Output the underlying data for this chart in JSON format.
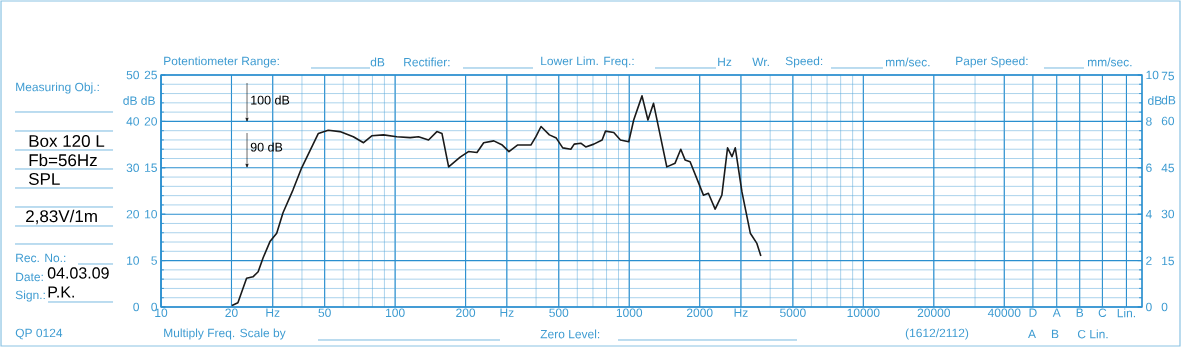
{
  "chart_data": {
    "type": "line",
    "log": "x",
    "grid": true,
    "marker": "none",
    "line_style": "solid",
    "x": [
      20.1,
      21.3,
      23.2,
      24.7,
      26.0,
      27.3,
      29.2,
      31.2,
      33.2,
      36.6,
      39.9,
      43.4,
      47.0,
      51.8,
      58.1,
      66.3,
      73.3,
      79.5,
      89.2,
      101.7,
      115.9,
      125.9,
      138.9,
      150.8,
      158.5,
      169.3,
      189.6,
      205.7,
      223.7,
      238.9,
      264,
      286.9,
      306.4,
      333,
      380,
      399.5,
      420,
      456,
      488,
      520,
      563,
      582,
      621,
      652,
      706,
      766,
      792,
      859,
      917,
      995,
      1045,
      1134,
      1202,
      1270,
      1447,
      1570,
      1660,
      1732,
      1820,
      2075,
      2178,
      2328,
      2487,
      2630,
      2747,
      2838,
      3030,
      3290,
      3510,
      3650
    ],
    "series": [
      {
        "color": "#1a1a1a",
        "values": [
          0.3,
          0.9,
          6.2,
          6.5,
          7.6,
          10.6,
          14.1,
          15.9,
          20.3,
          25.2,
          30.0,
          33.8,
          37.4,
          38.1,
          37.8,
          36.7,
          35.4,
          36.9,
          37.1,
          36.7,
          36.5,
          36.7,
          36.0,
          37.8,
          37.4,
          30.2,
          32.3,
          33.5,
          33.3,
          35.4,
          35.8,
          34.9,
          33.5,
          34.9,
          34.9,
          36.7,
          38.9,
          37.1,
          36.4,
          34.3,
          34.0,
          35.1,
          35.3,
          34.5,
          35.1,
          36.0,
          37.9,
          37.6,
          36.0,
          35.6,
          40.3,
          45.5,
          40.3,
          43.9,
          30.2,
          31.0,
          34.0,
          31.7,
          31.3,
          24.1,
          24.5,
          21.1,
          24.1,
          34.3,
          32.4,
          34.3,
          24.8,
          15.9,
          13.7,
          11.0
        ]
      }
    ],
    "xlim": [
      10,
      155000
    ],
    "xticks": [
      10,
      20,
      {
        "value": 30,
        "label": "Hz"
      },
      50,
      100,
      200,
      {
        "value": 300,
        "label": "Hz"
      },
      500,
      1000,
      2000,
      {
        "value": 3000,
        "label": "Hz"
      },
      5000,
      10000,
      20000,
      40000,
      {
        "value": 53000,
        "label": "D"
      },
      {
        "value": 67000,
        "label": "A"
      },
      {
        "value": 84000,
        "label": "B"
      },
      {
        "value": 105000,
        "label": "C"
      },
      {
        "value": 133000,
        "label": "Lin."
      }
    ],
    "ylim": [
      0,
      50
    ],
    "yticks": [
      0,
      10,
      20,
      30,
      40,
      50
    ],
    "ylabel": "dB",
    "y2lim": [
      0,
      25
    ],
    "y2ticks": [
      0,
      5,
      10,
      15,
      20,
      25
    ],
    "y2label": "dB",
    "y3lim": [
      0,
      10
    ],
    "y3ticks": [
      0,
      2,
      4,
      6,
      8,
      10
    ],
    "y3label": "dB",
    "annotations": [
      "100 dB",
      "90 dB",
      "Measuring Obj.:",
      "Box 120 L",
      "Fb=56Hz",
      "SPL",
      "2,83V/1m",
      "Rec. No.:",
      "Date:",
      "04.03.09",
      "Sign.:",
      "P.K.",
      "QP 0124",
      "Potentiometer Range:",
      "dB",
      "Rectifier:",
      "Lower Lim. Freq.:",
      "Hz",
      "Wr.",
      "Speed:",
      "mm/sec.",
      "Paper Speed:",
      "mm/sec.",
      "Multiply Freq. Scale by",
      "Zero Level:",
      "(1612/2112)",
      "A",
      "B",
      "C Lin.",
      "75",
      "60",
      "45",
      "30",
      "15",
      "0",
      "dB"
    ]
  }
}
